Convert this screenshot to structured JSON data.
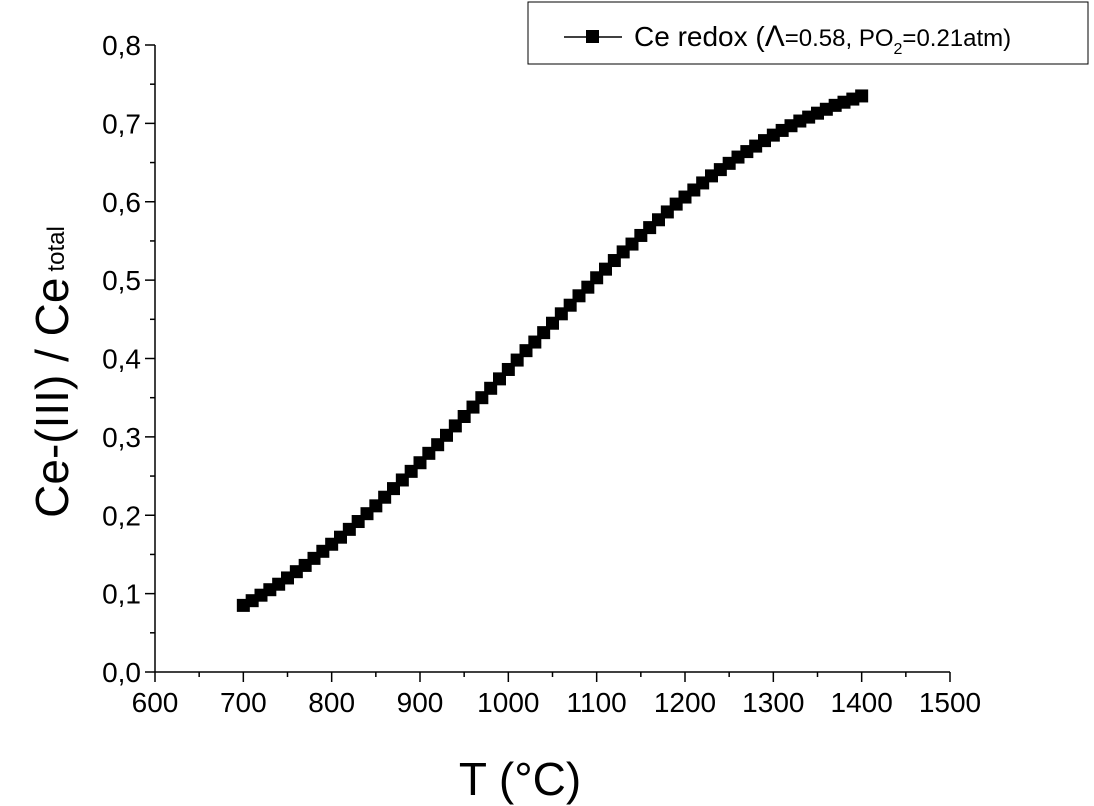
{
  "chart_data": {
    "type": "scatter",
    "xlabel": "T (°C)",
    "ylabel": {
      "main": "Ce-(III) / Ce",
      "subscript": "total"
    },
    "xlim": [
      600,
      1500
    ],
    "ylim": [
      0.0,
      0.8
    ],
    "x_ticks": [
      "600",
      "700",
      "800",
      "900",
      "1000",
      "1100",
      "1200",
      "1300",
      "1400",
      "1500"
    ],
    "y_ticks": [
      "0,0",
      "0,1",
      "0,2",
      "0,3",
      "0,4",
      "0,5",
      "0,6",
      "0,7",
      "0,8"
    ],
    "grid": false,
    "legend": {
      "position": "top-right",
      "label_before": "Ce redox (",
      "lambda_symbol": "Λ",
      "label_mid": "=0.58, PO",
      "po2_subscript": "2",
      "label_after": "=0.21atm)"
    },
    "series": [
      {
        "name": "Ce redox (Λ=0.58, PO2=0.21atm)",
        "color": "#000000",
        "marker": "square",
        "x": [
          700,
          710,
          720,
          730,
          740,
          750,
          760,
          770,
          780,
          790,
          800,
          810,
          820,
          830,
          840,
          850,
          860,
          870,
          880,
          890,
          900,
          910,
          920,
          930,
          940,
          950,
          960,
          970,
          980,
          990,
          1000,
          1010,
          1020,
          1030,
          1040,
          1050,
          1060,
          1070,
          1080,
          1090,
          1100,
          1110,
          1120,
          1130,
          1140,
          1150,
          1160,
          1170,
          1180,
          1190,
          1200,
          1210,
          1220,
          1230,
          1240,
          1250,
          1260,
          1270,
          1280,
          1290,
          1300,
          1310,
          1320,
          1330,
          1340,
          1350,
          1360,
          1370,
          1380,
          1390,
          1400
        ],
        "y": [
          0.085,
          0.091,
          0.098,
          0.105,
          0.112,
          0.12,
          0.128,
          0.136,
          0.145,
          0.154,
          0.163,
          0.172,
          0.182,
          0.192,
          0.202,
          0.212,
          0.223,
          0.234,
          0.245,
          0.256,
          0.267,
          0.279,
          0.29,
          0.302,
          0.314,
          0.326,
          0.338,
          0.35,
          0.362,
          0.374,
          0.386,
          0.398,
          0.41,
          0.421,
          0.433,
          0.445,
          0.457,
          0.468,
          0.48,
          0.491,
          0.503,
          0.514,
          0.525,
          0.536,
          0.546,
          0.557,
          0.567,
          0.577,
          0.587,
          0.597,
          0.606,
          0.615,
          0.624,
          0.633,
          0.641,
          0.649,
          0.657,
          0.664,
          0.671,
          0.678,
          0.685,
          0.691,
          0.697,
          0.703,
          0.708,
          0.713,
          0.718,
          0.723,
          0.727,
          0.731,
          0.735
        ]
      }
    ]
  }
}
